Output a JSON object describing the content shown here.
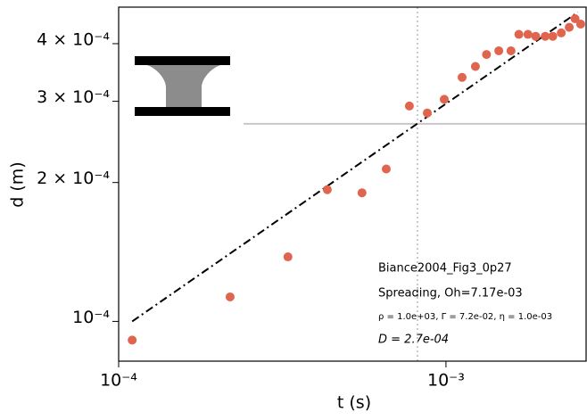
{
  "chart_data": {
    "type": "scatter",
    "x_label": "t (s)",
    "y_label": "d (m)",
    "log_x": true,
    "log_y": true,
    "xlim": [
      0.0001,
      0.00268
    ],
    "ylim": [
      8.2e-05,
      0.00048
    ],
    "xticks": [
      {
        "value": 0.0001,
        "label": "10⁻⁴"
      },
      {
        "value": 0.001,
        "label": "10⁻³"
      }
    ],
    "yticks": [
      {
        "value": 0.0001,
        "label": "10⁻⁴"
      },
      {
        "value": 0.0002,
        "label": "2 × 10⁻⁴"
      },
      {
        "value": 0.0003,
        "label": "3 × 10⁻⁴"
      },
      {
        "value": 0.0004,
        "label": "4 × 10⁻⁴"
      }
    ],
    "series": [
      {
        "color": "#e0654f",
        "x": [
          0.00011,
          0.000219,
          0.000329,
          0.000434,
          0.000554,
          0.000657,
          0.000773,
          0.000877,
          0.000988,
          0.00112,
          0.00123,
          0.00133,
          0.00145,
          0.00158,
          0.00167,
          0.00178,
          0.00188,
          0.00201,
          0.00212,
          0.00225,
          0.00238,
          0.00248,
          0.00258
        ],
        "values": [
          9.11e-05,
          0.000113,
          0.000138,
          0.000193,
          0.00019,
          0.000214,
          0.000293,
          0.000283,
          0.000303,
          0.000338,
          0.000357,
          0.000379,
          0.000386,
          0.000386,
          0.000419,
          0.000419,
          0.000415,
          0.000415,
          0.000415,
          0.000422,
          0.000434,
          0.000453,
          0.000441
        ]
      }
    ],
    "fit_line": {
      "color": "#000000",
      "x": [
        0.00011,
        0.00253
      ],
      "y": [
        0.0001,
        0.000468
      ]
    },
    "vline": 0.000818,
    "hline": 0.000268,
    "ref_color": "#c8c8c8",
    "annotations": [
      "Biance2004_Fig3_0p27",
      "Spreading, Oh=7.17e-03",
      "ρ = 1.0e+03, Γ = 7.2e-02, η = 1.0e-03",
      "D = 2.7e-04"
    ]
  }
}
